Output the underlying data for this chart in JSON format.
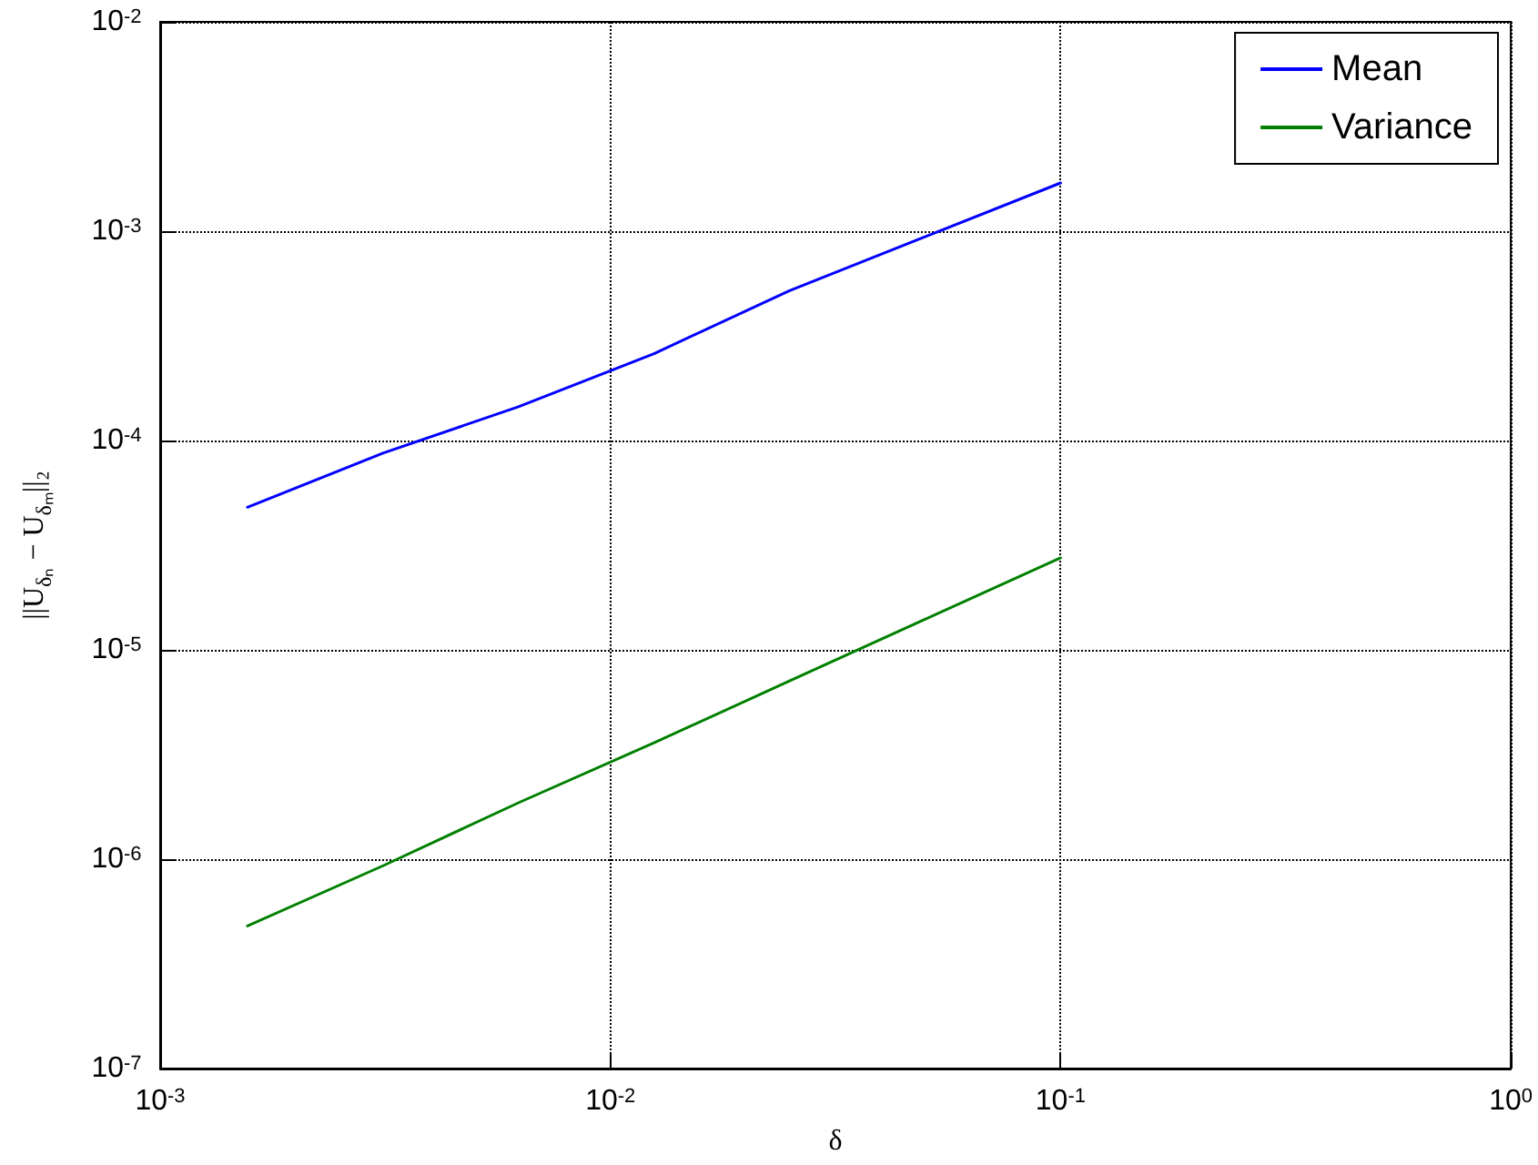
{
  "chart_data": {
    "type": "line",
    "xlabel": "δ",
    "ylabel": "||U$_{δₙ}$ − U$_{δₘ}$||₂",
    "x": [
      0.0015625,
      0.003125,
      0.00625,
      0.0125,
      0.025,
      0.05,
      0.1
    ],
    "series": [
      {
        "name": "Mean",
        "color": "#0000ff",
        "values": [
          4.8e-05,
          8.7e-05,
          0.000145,
          0.00026,
          0.00052,
          0.00094,
          0.0017
        ]
      },
      {
        "name": "Variance",
        "color": "#008000",
        "values": [
          4.8e-07,
          9.3e-07,
          1.86e-06,
          3.6e-06,
          7.1e-06,
          1.4e-05,
          2.75e-05
        ]
      }
    ],
    "log": "xy",
    "xlim": [
      0.001,
      1
    ],
    "ylim": [
      1e-07,
      0.01
    ],
    "xticks": [
      {
        "value": 0.001,
        "label": "10$^{-3}$"
      },
      {
        "value": 0.01,
        "label": "10$^{-2}$"
      },
      {
        "value": 0.1,
        "label": "10$^{-1}$"
      },
      {
        "value": 1,
        "label": "10$^{0}$"
      }
    ],
    "yticks": [
      {
        "value": 1e-07,
        "label": "10$^{-7}$"
      },
      {
        "value": 1e-06,
        "label": "10$^{-6}$"
      },
      {
        "value": 1e-05,
        "label": "10$^{-5}$"
      },
      {
        "value": 0.0001,
        "label": "10$^{-4}$"
      },
      {
        "value": 0.001,
        "label": "10$^{-3}$"
      },
      {
        "value": 0.01,
        "label": "10$^{-2}$"
      }
    ],
    "grid": true,
    "legend": "top right",
    "marker": "none",
    "line_style": "solid"
  }
}
